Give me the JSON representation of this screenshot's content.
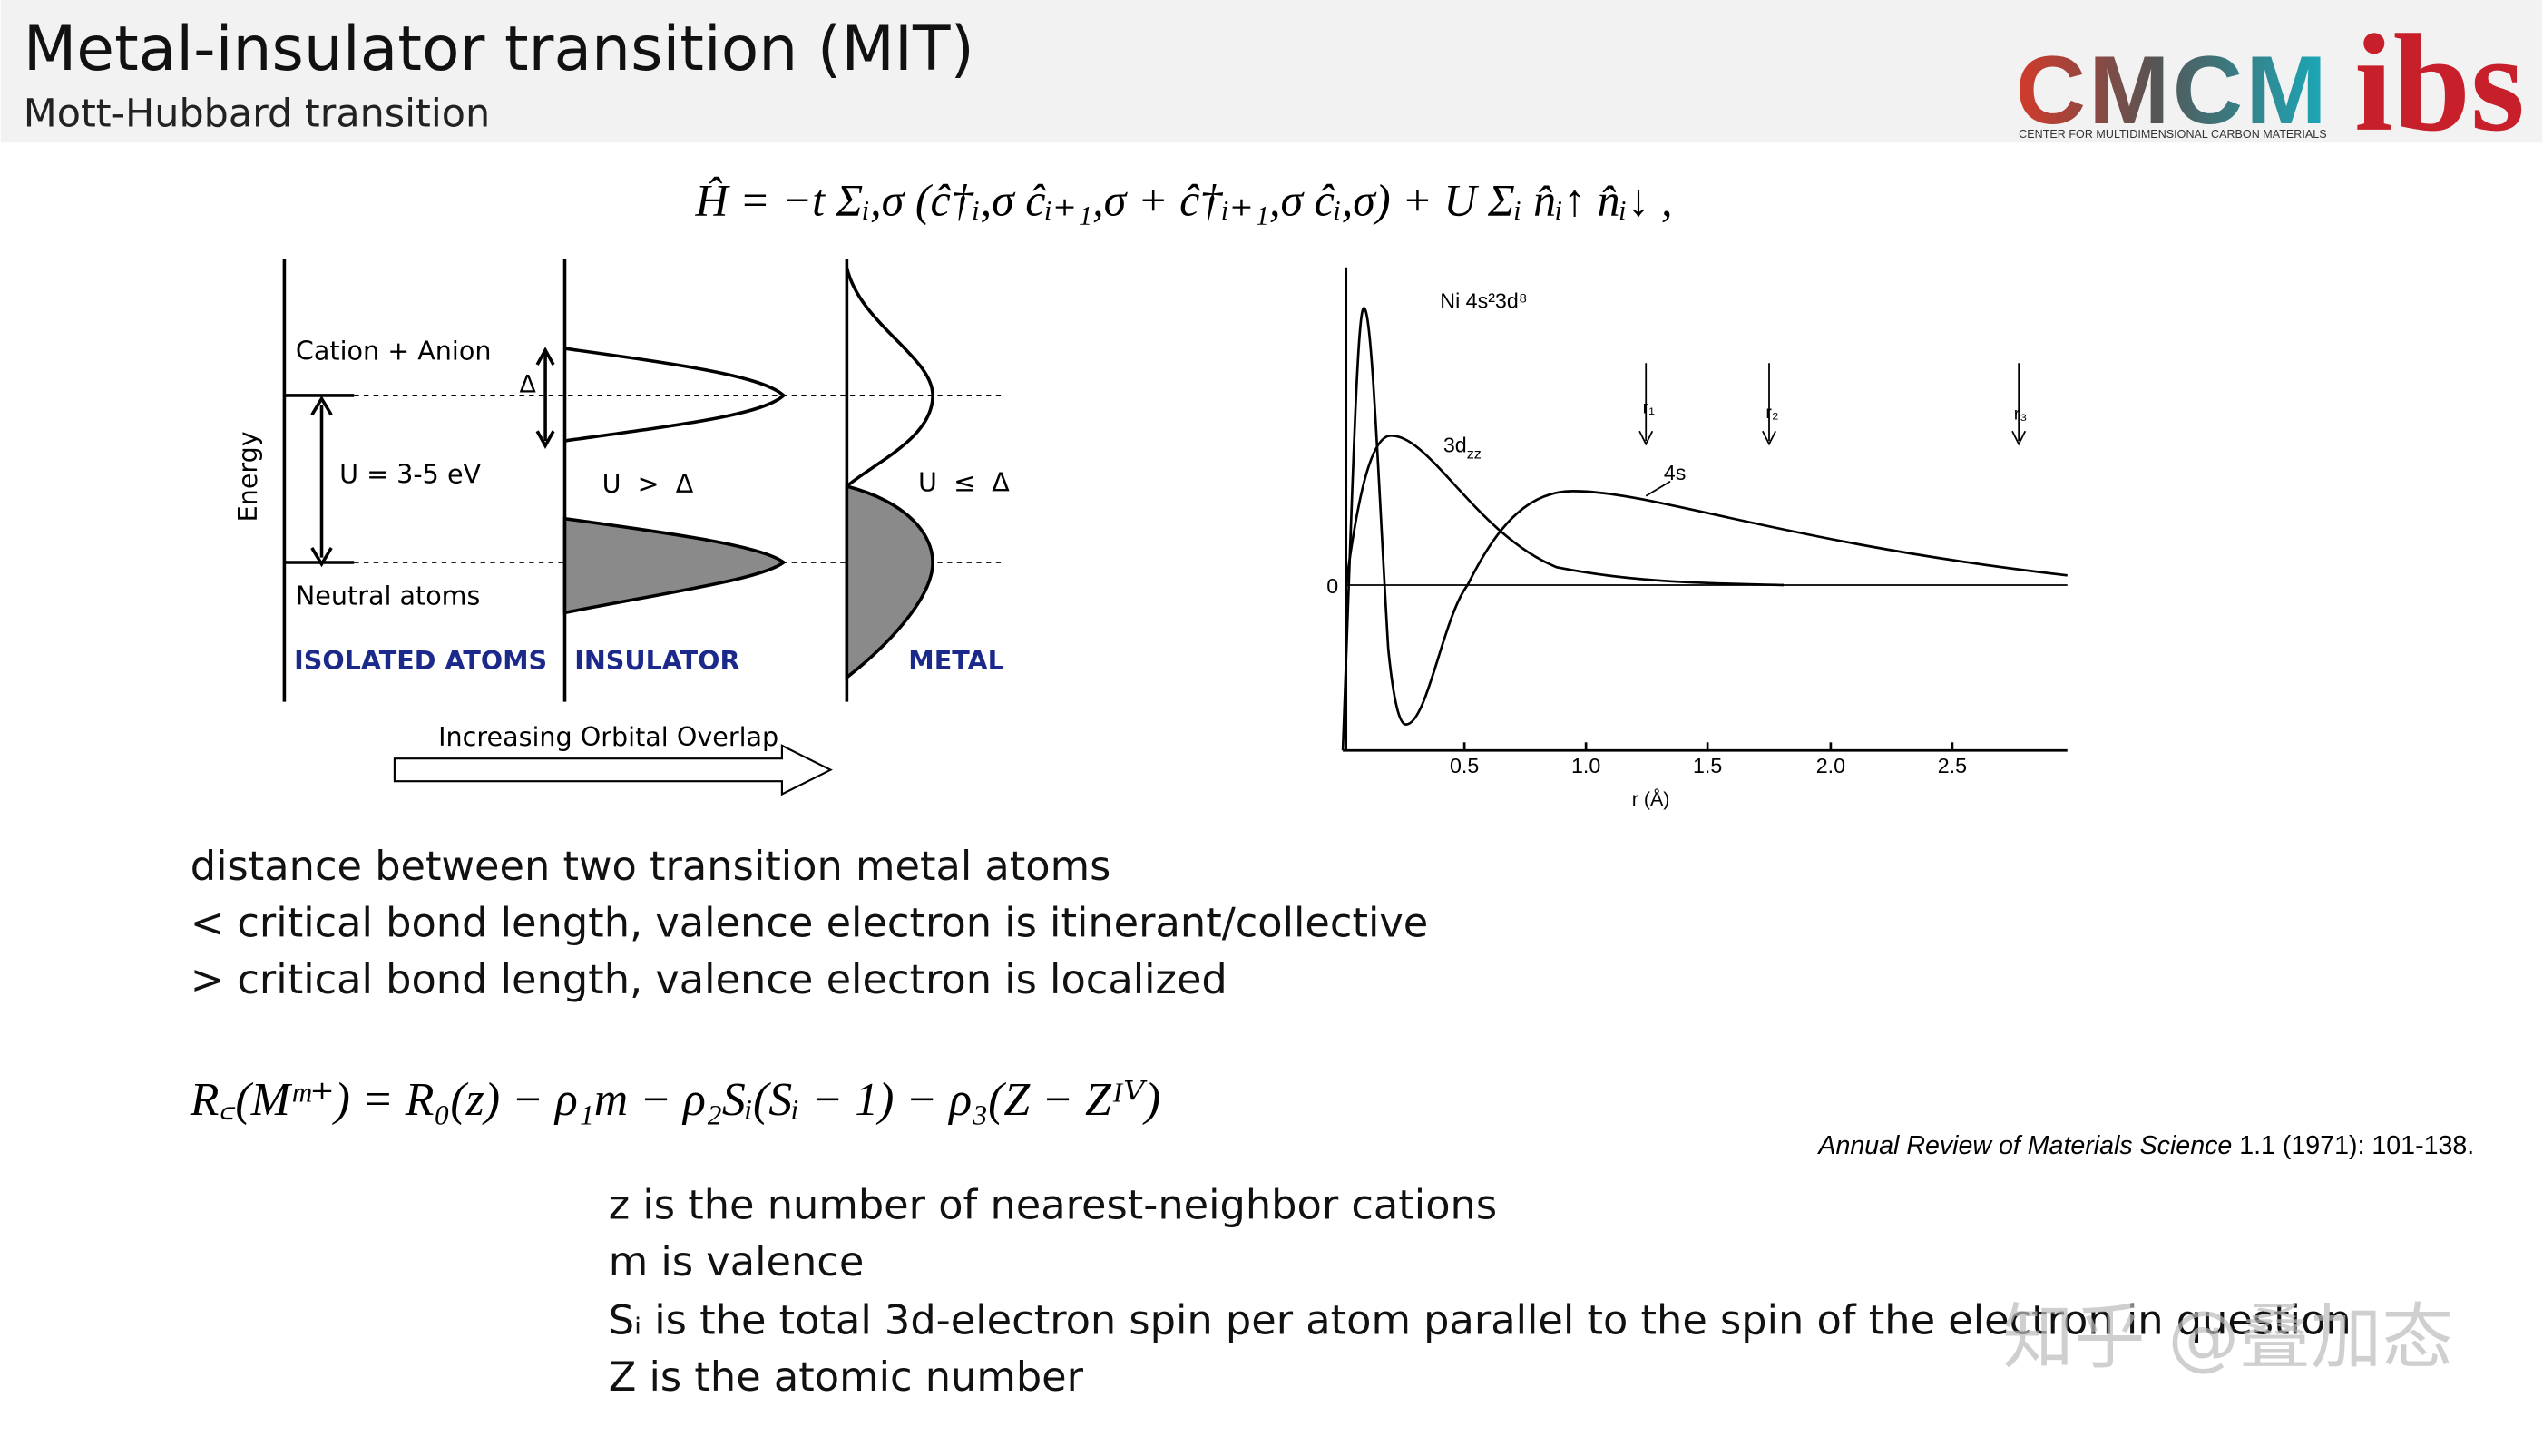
{
  "header": {
    "title": "Metal-insulator transition (MIT)",
    "subtitle": "Mott-Hubbard transition",
    "logo": {
      "main": "CMCM",
      "caption": "CENTER FOR MULTIDIMENSIONAL CARBON MATERIALS",
      "mark": "ibs"
    }
  },
  "hamiltonian": "Ĥ = −t Σᵢ,σ (ĉ†ᵢ,σ ĉᵢ₊₁,σ + ĉ†ᵢ₊₁,σ ĉᵢ,σ) + U Σᵢ n̂ᵢ↑ n̂ᵢ↓ ,",
  "band_diagram": {
    "y_axis": "Energy",
    "upper_level": "Cation + Anion",
    "lower_level": "Neutral atoms",
    "gap": "U = 3-5 eV",
    "delta": "Δ",
    "insulator_condition": "U  >  Δ",
    "metal_condition": "U  ≤  Δ",
    "columns": [
      "ISOLATED ATOMS",
      "INSULATOR",
      "METAL"
    ],
    "arrow": "Increasing Orbital Overlap"
  },
  "radial_plot": {
    "title": "Ni 4s²3d⁸",
    "curve_3d": {
      "main": "3d",
      "sub": "zz"
    },
    "curve_4s": "4s",
    "markers": [
      "r₁",
      "r₂",
      "r₃"
    ],
    "zero": "0",
    "xticks": [
      "0.5",
      "1.0",
      "1.5",
      "2.0",
      "2.5"
    ],
    "xlabel": "r (Å)"
  },
  "statements": [
    "distance between two transition metal atoms",
    "< critical bond length, valence electron is itinerant/collective",
    "> critical bond length, valence electron is localized"
  ],
  "formula": "R꜀(Mᵐ⁺) = R₀(z) − ρ₁m − ρ₂Sᵢ(Sᵢ − 1) − ρ₃(Z − Zᴵⱽ)",
  "citation": {
    "journal": "Annual Review of Materials Science",
    "details": " 1.1 (1971): 101-138."
  },
  "definitions": [
    "z is the number of nearest-neighbor cations",
    "m is valence",
    "Sᵢ is the total 3d-electron spin per atom parallel to the spin of the electron in question",
    "Z is the atomic number"
  ],
  "watermark": "知乎 @叠加态"
}
